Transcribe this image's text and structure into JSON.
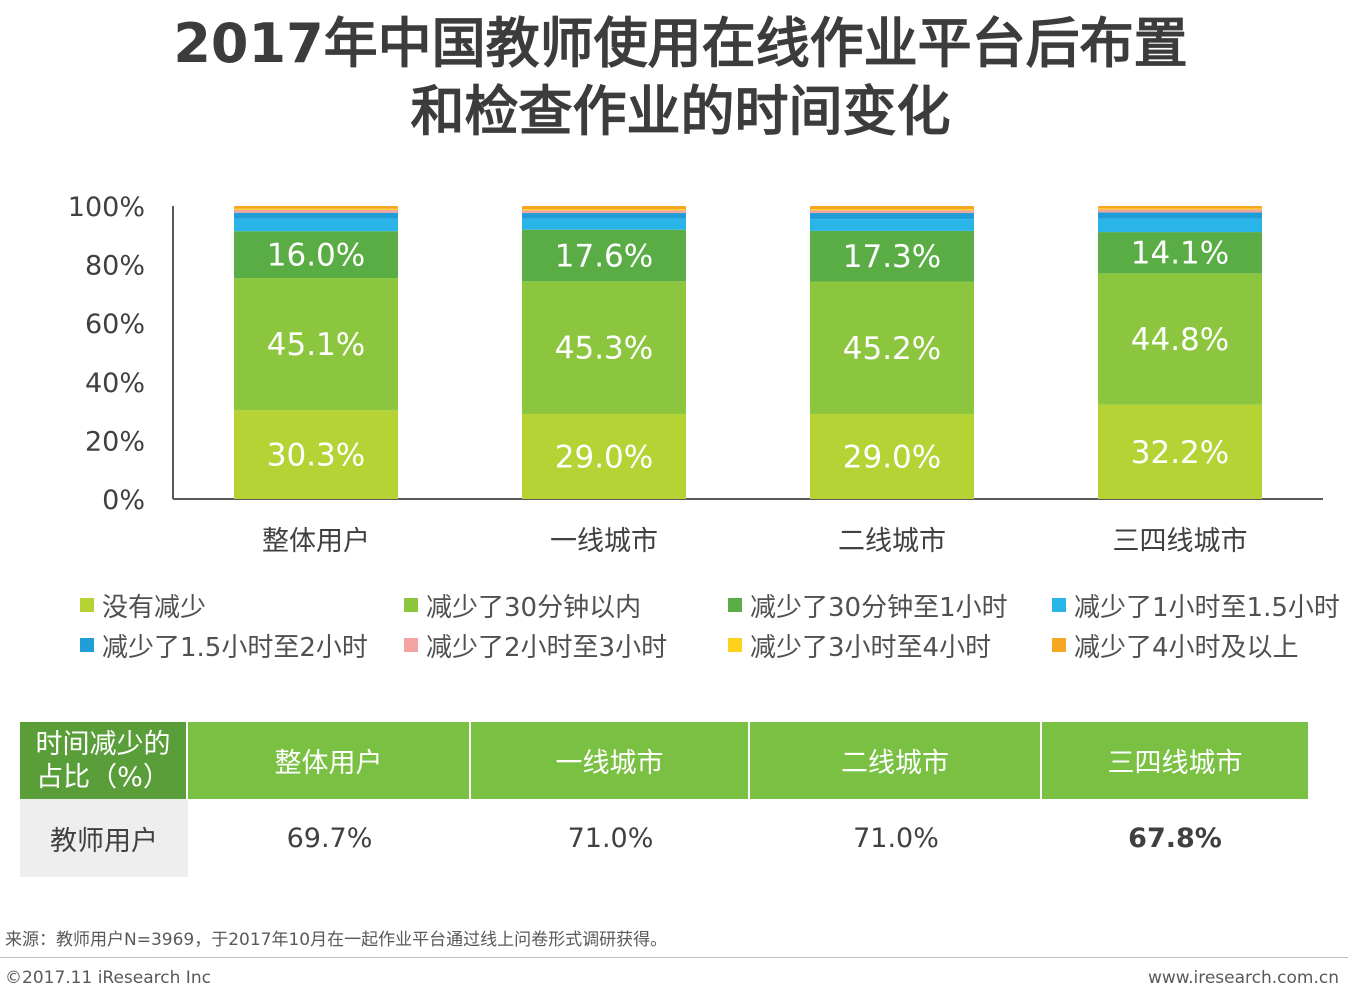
{
  "title": {
    "line1": "2017年中国教师使用在线作业平台后布置",
    "line2": "和检查作业的时间变化"
  },
  "colors": {
    "s1": "#b5d334",
    "s2": "#8cc63f",
    "s3": "#5aac45",
    "s4": "#29b5e8",
    "s5": "#1f9ed8",
    "s6": "#f4a3a3",
    "s7": "#ffd11a",
    "s8": "#f5a623",
    "header_green": "#7ac143",
    "header_dark_green": "#5a9e3a"
  },
  "chart_data": {
    "type": "bar",
    "stacked": true,
    "categories": [
      "整体用户",
      "一线城市",
      "二线城市",
      "三四线城市"
    ],
    "ylim": [
      0,
      100
    ],
    "yticks": [
      "0%",
      "20%",
      "40%",
      "60%",
      "80%",
      "100%"
    ],
    "series": [
      {
        "name": "没有减少",
        "values": [
          30.3,
          29.0,
          29.0,
          32.2
        ],
        "labels": [
          "30.3%",
          "29.0%",
          "29.0%",
          "32.2%"
        ]
      },
      {
        "name": "减少了30分钟以内",
        "values": [
          45.1,
          45.3,
          45.2,
          44.8
        ],
        "labels": [
          "45.1%",
          "45.3%",
          "45.2%",
          "44.8%"
        ]
      },
      {
        "name": "减少了30分钟至1小时",
        "values": [
          16.0,
          17.6,
          17.3,
          14.1
        ],
        "labels": [
          "16.0%",
          "17.6%",
          "17.3%",
          "14.1%"
        ]
      },
      {
        "name": "减少了1小时至1.5小时",
        "values": [
          4.3,
          3.8,
          4.0,
          4.6
        ]
      },
      {
        "name": "减少了1.5小时至2小时",
        "values": [
          2.0,
          1.9,
          2.1,
          2.1
        ]
      },
      {
        "name": "减少了2小时至3小时",
        "values": [
          1.0,
          0.9,
          0.9,
          1.0
        ]
      },
      {
        "name": "减少了3小时至4小时",
        "values": [
          0.4,
          0.4,
          0.4,
          0.4
        ]
      },
      {
        "name": "减少了4小时及以上",
        "values": [
          0.9,
          1.1,
          1.1,
          0.8
        ]
      }
    ]
  },
  "table": {
    "header_first": "时间减少的占比（%）",
    "columns": [
      "整体用户",
      "一线城市",
      "二线城市",
      "三四线城市"
    ],
    "row_label": "教师用户",
    "values": [
      "69.7%",
      "71.0%",
      "71.0%",
      "67.8%"
    ]
  },
  "footer": {
    "source": "来源：教师用户N=3969，于2017年10月在一起作业平台通过线上问卷形式调研获得。",
    "copyright": "©2017.11 iResearch Inc",
    "website": "www.iresearch.com.cn"
  }
}
